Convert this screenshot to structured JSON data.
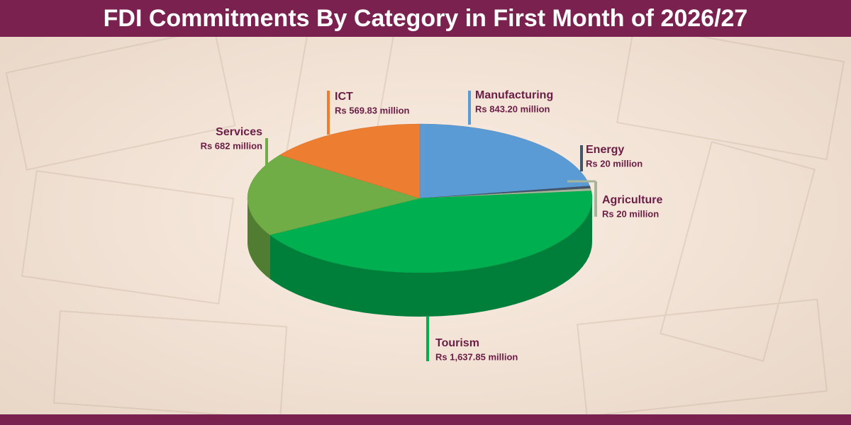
{
  "chart_data": {
    "type": "pie",
    "title": "FDI Commitments By Category in First Month of 2026/27",
    "categories": [
      "Manufacturing",
      "Energy",
      "Agriculture",
      "Tourism",
      "Services",
      "ICT"
    ],
    "values": [
      843.2,
      20,
      20,
      1637.85,
      682,
      569.83
    ],
    "value_labels": [
      "Rs 843.20 million",
      "Rs 20 million",
      "Rs 20 million",
      "Rs 1,637.85 million",
      "Rs 682 million",
      "Rs 569.83 million"
    ],
    "colors": [
      "#5b9bd5",
      "#44546a",
      "#a5b59a",
      "#00b050",
      "#70ad47",
      "#ed7d31"
    ]
  }
}
